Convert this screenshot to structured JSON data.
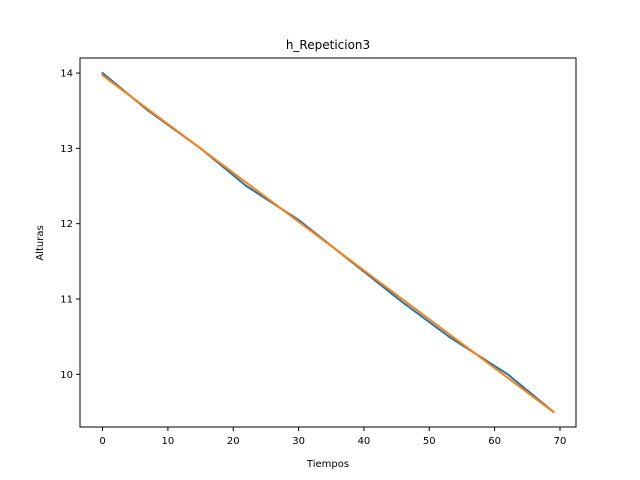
{
  "chart_data": {
    "type": "line",
    "title": "h_Repeticion3",
    "xlabel": "Tiempos",
    "ylabel": "Alturas",
    "xlim": [
      -3.45,
      72.45
    ],
    "ylim": [
      9.3,
      14.2
    ],
    "xticks": [
      0,
      10,
      20,
      30,
      40,
      50,
      60,
      70
    ],
    "yticks": [
      10,
      11,
      12,
      13,
      14
    ],
    "grid": false,
    "series": [
      {
        "color": "#1f77b4",
        "x": [
          0,
          7,
          15,
          22,
          30,
          38,
          46,
          53,
          62,
          69
        ],
        "y": [
          14.0,
          13.5,
          13.0,
          12.5,
          12.05,
          11.5,
          10.95,
          10.5,
          10.0,
          9.5
        ]
      },
      {
        "color": "#ff7f0e",
        "x": [
          0,
          69
        ],
        "y": [
          13.97,
          9.5
        ]
      }
    ]
  }
}
